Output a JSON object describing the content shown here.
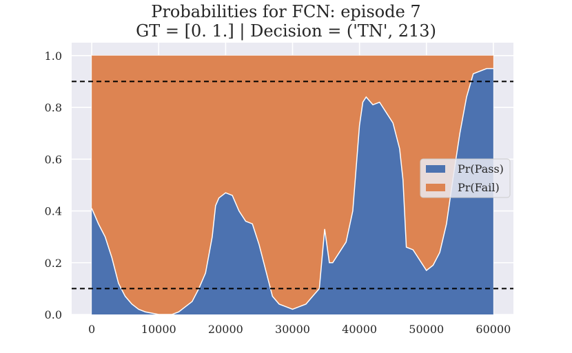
{
  "chart_data": {
    "type": "area",
    "title_line1": "Probabilities for FCN: episode 7",
    "title_line2": "GT = [0. 1.] | Decision = ('TN', 213)",
    "xlabel": "",
    "ylabel": "",
    "xlim": [
      -3000,
      63000
    ],
    "ylim": [
      0,
      1.05
    ],
    "xticks": [
      0,
      10000,
      20000,
      30000,
      40000,
      50000,
      60000
    ],
    "yticks": [
      0.0,
      0.2,
      0.4,
      0.6,
      0.8,
      1.0
    ],
    "ytick_labels": [
      "0.0",
      "0.2",
      "0.4",
      "0.6",
      "0.8",
      "1.0"
    ],
    "grid": true,
    "stacked": true,
    "thresholds": [
      0.9,
      0.1
    ],
    "legend_position": "center-right",
    "series": [
      {
        "name": "Pr(Pass)",
        "color": "#4c72b0",
        "points": [
          [
            0,
            0.41
          ],
          [
            1000,
            0.35
          ],
          [
            2000,
            0.3
          ],
          [
            3000,
            0.22
          ],
          [
            4000,
            0.12
          ],
          [
            5000,
            0.07
          ],
          [
            6000,
            0.04
          ],
          [
            7000,
            0.02
          ],
          [
            8000,
            0.01
          ],
          [
            9000,
            0.005
          ],
          [
            10000,
            0.0
          ],
          [
            11000,
            0.0
          ],
          [
            12000,
            0.0
          ],
          [
            13000,
            0.01
          ],
          [
            14000,
            0.03
          ],
          [
            15000,
            0.05
          ],
          [
            16000,
            0.1
          ],
          [
            17000,
            0.16
          ],
          [
            18000,
            0.3
          ],
          [
            18500,
            0.42
          ],
          [
            19000,
            0.45
          ],
          [
            20000,
            0.47
          ],
          [
            21000,
            0.46
          ],
          [
            22000,
            0.4
          ],
          [
            23000,
            0.36
          ],
          [
            24000,
            0.35
          ],
          [
            25000,
            0.27
          ],
          [
            26000,
            0.17
          ],
          [
            27000,
            0.07
          ],
          [
            28000,
            0.04
          ],
          [
            29000,
            0.03
          ],
          [
            30000,
            0.02
          ],
          [
            31000,
            0.03
          ],
          [
            32000,
            0.04
          ],
          [
            33000,
            0.07
          ],
          [
            34000,
            0.1
          ],
          [
            34800,
            0.33
          ],
          [
            35500,
            0.2
          ],
          [
            36000,
            0.2
          ],
          [
            37000,
            0.24
          ],
          [
            38000,
            0.28
          ],
          [
            39000,
            0.4
          ],
          [
            40000,
            0.73
          ],
          [
            40500,
            0.82
          ],
          [
            41000,
            0.84
          ],
          [
            42000,
            0.81
          ],
          [
            43000,
            0.82
          ],
          [
            44000,
            0.78
          ],
          [
            45000,
            0.74
          ],
          [
            46000,
            0.64
          ],
          [
            46500,
            0.52
          ],
          [
            47000,
            0.26
          ],
          [
            48000,
            0.25
          ],
          [
            49000,
            0.21
          ],
          [
            50000,
            0.17
          ],
          [
            51000,
            0.19
          ],
          [
            52000,
            0.24
          ],
          [
            53000,
            0.35
          ],
          [
            54000,
            0.53
          ],
          [
            55000,
            0.7
          ],
          [
            56000,
            0.84
          ],
          [
            57000,
            0.93
          ],
          [
            58000,
            0.94
          ],
          [
            59000,
            0.95
          ],
          [
            60000,
            0.95
          ]
        ]
      },
      {
        "name": "Pr(Fail)",
        "color": "#dd8452",
        "stack_top": 1.0,
        "note_values": "complement of Pr(Pass)"
      }
    ]
  }
}
